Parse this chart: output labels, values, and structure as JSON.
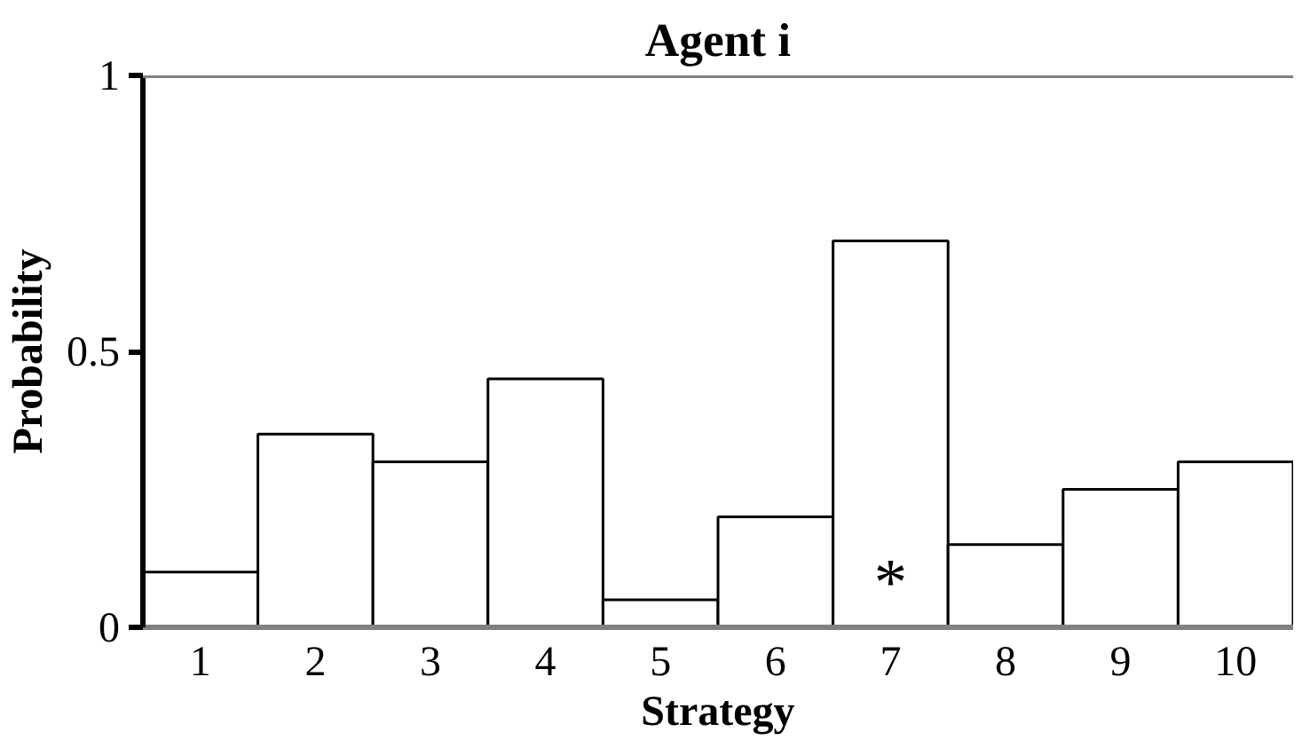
{
  "chart_data": {
    "type": "bar",
    "title": "Agent i",
    "xlabel": "Strategy",
    "ylabel": "Probability",
    "categories": [
      "1",
      "2",
      "3",
      "4",
      "5",
      "6",
      "7",
      "8",
      "9",
      "10"
    ],
    "series": [
      {
        "color": "#ffffff",
        "values": [
          0.1,
          0.35,
          0.3,
          0.45,
          0.05,
          0.2,
          0.7,
          0.15,
          0.25,
          0.3
        ]
      }
    ],
    "ylim": [
      0,
      1
    ],
    "yticks": [
      0,
      0.5,
      1
    ],
    "grid": false,
    "ref_lines": [
      {
        "axis": "y",
        "value": 1,
        "color": "#808080"
      }
    ],
    "annotations": [
      {
        "text": "*",
        "x": "7",
        "y": 0
      }
    ]
  }
}
